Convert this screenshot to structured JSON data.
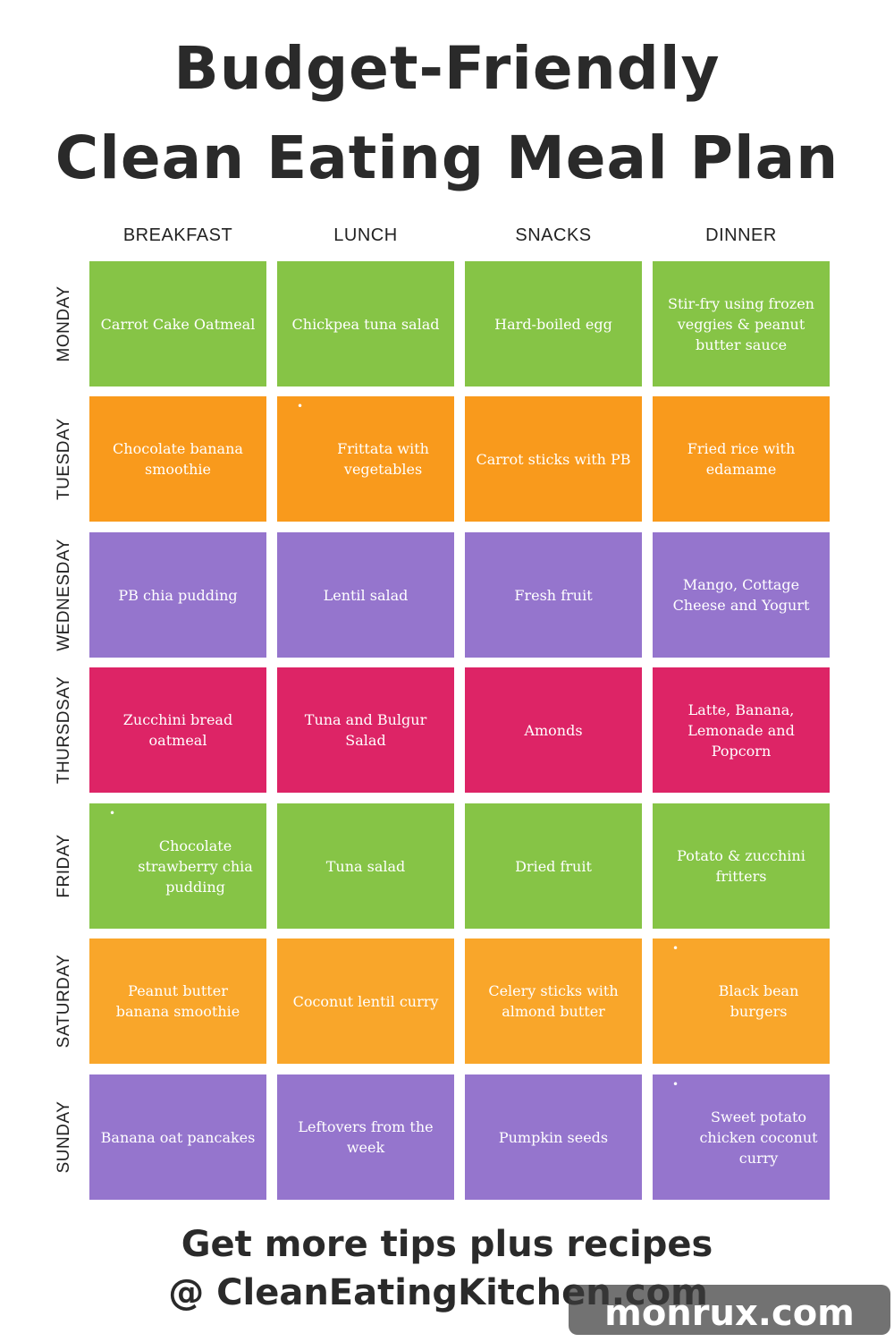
{
  "title": {
    "line1": "Budget-Friendly",
    "line2": "Clean Eating Meal Plan"
  },
  "columns": [
    "BREAKFAST",
    "LUNCH",
    "SNACKS",
    "DINNER"
  ],
  "colors": {
    "green": "#86c446",
    "orange": "#f99a1c",
    "purple": "#9575cd",
    "magenta": "#dd2466",
    "light_orange": "#f9a62a"
  },
  "days": [
    {
      "label": "MONDAY",
      "meals": [
        {
          "text": "Carrot Cake Oatmeal"
        },
        {
          "text": "Chickpea tuna salad"
        },
        {
          "text": "Hard-boiled egg"
        },
        {
          "text": "Stir-fry using frozen veggies & peanut butter sauce"
        }
      ]
    },
    {
      "label": "TUESDAY",
      "meals": [
        {
          "text": "Chocolate banana smoothie"
        },
        {
          "text": "Frittata with vegetables",
          "bullet": "•"
        },
        {
          "text": "Carrot sticks with PB"
        },
        {
          "text": "Fried rice with edamame"
        }
      ]
    },
    {
      "label": "WEDNESDAY",
      "meals": [
        {
          "text": "PB chia pudding"
        },
        {
          "text": "Lentil salad"
        },
        {
          "text": "Fresh fruit"
        },
        {
          "text": "Mango, Cottage Cheese and Yogurt"
        }
      ]
    },
    {
      "label": "THURSDSAY",
      "meals": [
        {
          "text": "Zucchini bread oatmeal"
        },
        {
          "text": "Tuna and Bulgur Salad"
        },
        {
          "text": "Amonds"
        },
        {
          "text": "Latte, Banana, Lemonade and Popcorn"
        }
      ]
    },
    {
      "label": "FRIDAY",
      "meals": [
        {
          "text": "Chocolate strawberry chia pudding",
          "bullet": "•"
        },
        {
          "text": "Tuna salad"
        },
        {
          "text": "Dried fruit"
        },
        {
          "text": "Potato & zucchini fritters"
        }
      ]
    },
    {
      "label": "SATURDAY",
      "meals": [
        {
          "text": "Peanut butter banana smoothie"
        },
        {
          "text": "Coconut lentil curry"
        },
        {
          "text": "Celery sticks with almond butter"
        },
        {
          "text": "Black bean burgers",
          "bullet": "•"
        }
      ]
    },
    {
      "label": "SUNDAY",
      "meals": [
        {
          "text": "Banana oat pancakes"
        },
        {
          "text": "Leftovers from the week"
        },
        {
          "text": "Pumpkin seeds"
        },
        {
          "text": "Sweet potato chicken coconut curry",
          "bullet": "•"
        }
      ]
    }
  ],
  "footer": {
    "line1": "Get more tips plus recipes",
    "line2": "@ CleanEatingKitchen.com"
  },
  "watermark": "monrux.com"
}
